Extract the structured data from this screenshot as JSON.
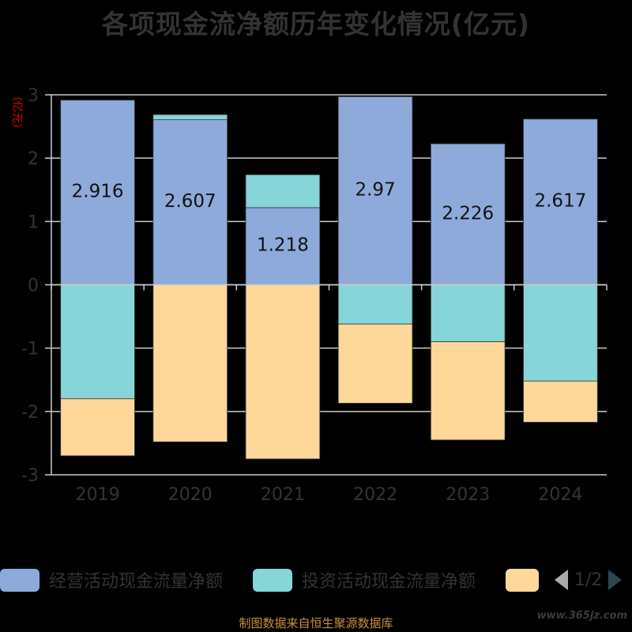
{
  "title": "各项现金流净额历年变化情况(亿元)",
  "ylabel": "(亿元)",
  "source_note": "制图数据来自恒生聚源数据库",
  "watermark": "www.365jz.com",
  "colors": {
    "operating": "#8eaadb",
    "investing": "#86d5d8",
    "financing": "#fdd89a",
    "axis_text": "#333333",
    "grid": "#cccccc"
  },
  "legend": {
    "items": [
      {
        "label": "经营活动现金流量净额",
        "color": "#8eaadb"
      },
      {
        "label": "投资活动现金流量净额",
        "color": "#86d5d8"
      },
      {
        "label": "",
        "color": "#fdd89a"
      }
    ],
    "page_text": "1/2"
  },
  "chart_data": {
    "type": "bar",
    "stacked": true,
    "categories": [
      "2019",
      "2020",
      "2021",
      "2022",
      "2023",
      "2024"
    ],
    "series": [
      {
        "name": "经营活动现金流量净额",
        "values": [
          2.916,
          2.607,
          1.218,
          2.97,
          2.226,
          2.617
        ]
      },
      {
        "name": "投资活动现金流量净额",
        "values": [
          -1.8,
          0.08,
          0.52,
          -0.62,
          -0.9,
          -1.52
        ]
      },
      {
        "name": "",
        "values": [
          -0.9,
          -2.48,
          -2.75,
          -1.25,
          -1.55,
          -0.65
        ]
      }
    ],
    "data_labels": [
      "2.916",
      "2.607",
      "1.218",
      "2.97",
      "2.226",
      "2.617"
    ],
    "ylim": [
      -3,
      3
    ],
    "yticks": [
      3,
      2,
      1,
      0,
      -1,
      -2,
      -3
    ],
    "grid": true,
    "legend_position": "bottom"
  }
}
